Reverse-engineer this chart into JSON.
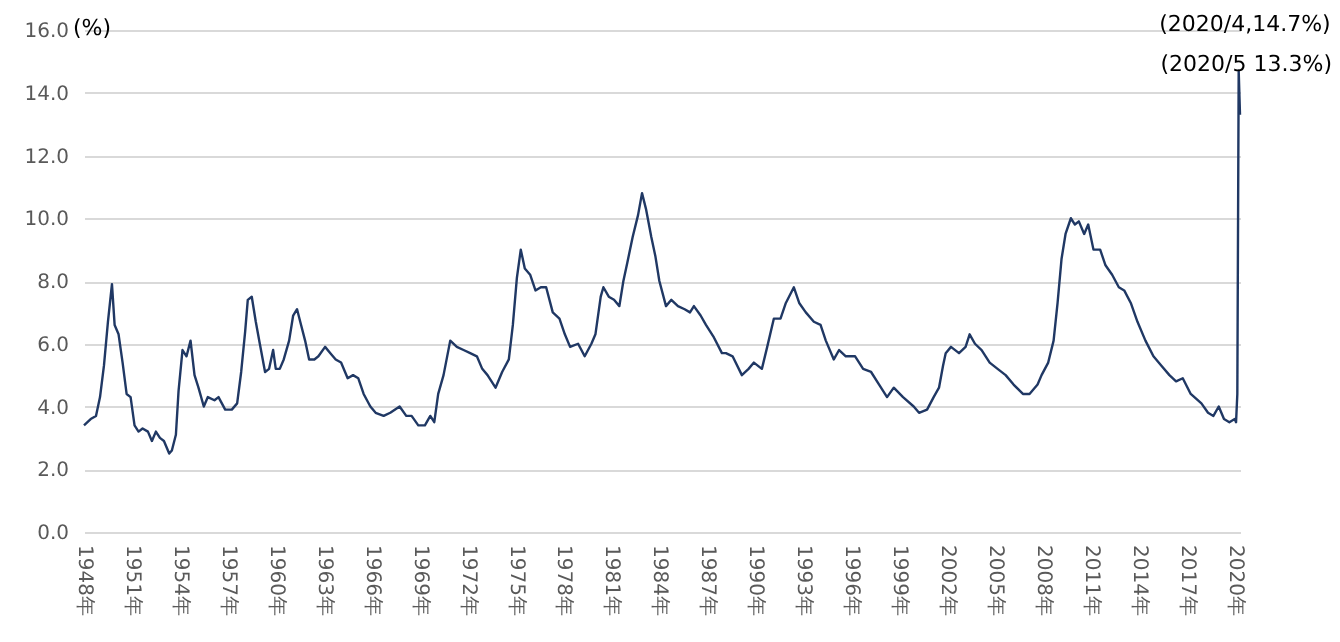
{
  "chart_data": {
    "type": "line",
    "ylabel": "(%)",
    "grid": "y",
    "marker": "none",
    "line_style": "solid",
    "xlim": [
      "1948-01",
      "2020-05"
    ],
    "ylim": [
      0,
      16
    ],
    "yticks": [
      {
        "value": 0,
        "label": "0.0"
      },
      {
        "value": 2,
        "label": "2.0"
      },
      {
        "value": 4,
        "label": "4.0"
      },
      {
        "value": 6,
        "label": "6.0"
      },
      {
        "value": 8,
        "label": "8.0"
      },
      {
        "value": 10,
        "label": "10.0"
      },
      {
        "value": 12,
        "label": "12.0"
      },
      {
        "value": 14,
        "label": "14.0"
      },
      {
        "value": 16,
        "label": "16.0"
      }
    ],
    "xticks": [
      {
        "value": "1948-01",
        "label": "1948年"
      },
      {
        "value": "1951-01",
        "label": "1951年"
      },
      {
        "value": "1954-01",
        "label": "1954年"
      },
      {
        "value": "1957-01",
        "label": "1957年"
      },
      {
        "value": "1960-01",
        "label": "1960年"
      },
      {
        "value": "1963-01",
        "label": "1963年"
      },
      {
        "value": "1966-01",
        "label": "1966年"
      },
      {
        "value": "1969-01",
        "label": "1969年"
      },
      {
        "value": "1972-01",
        "label": "1972年"
      },
      {
        "value": "1975-01",
        "label": "1975年"
      },
      {
        "value": "1978-01",
        "label": "1978年"
      },
      {
        "value": "1981-01",
        "label": "1981年"
      },
      {
        "value": "1984-01",
        "label": "1984年"
      },
      {
        "value": "1987-01",
        "label": "1987年"
      },
      {
        "value": "1990-01",
        "label": "1990年"
      },
      {
        "value": "1993-01",
        "label": "1993年"
      },
      {
        "value": "1996-01",
        "label": "1996年"
      },
      {
        "value": "1999-01",
        "label": "1999年"
      },
      {
        "value": "2002-01",
        "label": "2002年"
      },
      {
        "value": "2005-01",
        "label": "2005年"
      },
      {
        "value": "2008-01",
        "label": "2008年"
      },
      {
        "value": "2011-01",
        "label": "2011年"
      },
      {
        "value": "2014-01",
        "label": "2014年"
      },
      {
        "value": "2017-01",
        "label": "2017年"
      },
      {
        "value": "2020-01",
        "label": "2020年"
      }
    ],
    "annotations": [
      {
        "text": "(2020/4,14.7%)",
        "x": "2020-04",
        "y": 14.7
      },
      {
        "text": "(2020/5 13.3%)",
        "x": "2020-05",
        "y": 13.3
      }
    ],
    "x": [
      "1948-01",
      "1948-06",
      "1948-10",
      "1949-01",
      "1949-04",
      "1949-07",
      "1949-10",
      "1949-12",
      "1950-03",
      "1950-06",
      "1950-09",
      "1950-12",
      "1951-03",
      "1951-06",
      "1951-09",
      "1952-01",
      "1952-04",
      "1952-07",
      "1952-10",
      "1953-01",
      "1953-05",
      "1953-07",
      "1953-10",
      "1953-12",
      "1954-03",
      "1954-06",
      "1954-09",
      "1954-12",
      "1955-03",
      "1955-07",
      "1955-10",
      "1956-03",
      "1956-06",
      "1956-11",
      "1957-04",
      "1957-08",
      "1957-11",
      "1958-02",
      "1958-04",
      "1958-07",
      "1958-10",
      "1959-01",
      "1959-05",
      "1959-08",
      "1959-11",
      "1960-01",
      "1960-04",
      "1960-07",
      "1960-11",
      "1961-02",
      "1961-05",
      "1961-08",
      "1961-11",
      "1962-02",
      "1962-06",
      "1962-09",
      "1963-02",
      "1963-06",
      "1963-10",
      "1964-02",
      "1964-07",
      "1964-11",
      "1965-03",
      "1965-07",
      "1965-12",
      "1966-04",
      "1966-10",
      "1967-03",
      "1967-10",
      "1968-03",
      "1968-07",
      "1968-12",
      "1969-05",
      "1969-09",
      "1969-12",
      "1970-03",
      "1970-07",
      "1970-12",
      "1971-05",
      "1971-10",
      "1972-03",
      "1972-08",
      "1972-12",
      "1973-04",
      "1973-10",
      "1974-03",
      "1974-08",
      "1974-11",
      "1975-02",
      "1975-05",
      "1975-08",
      "1975-12",
      "1976-04",
      "1976-08",
      "1976-12",
      "1977-05",
      "1977-10",
      "1978-02",
      "1978-06",
      "1978-12",
      "1979-05",
      "1979-10",
      "1980-01",
      "1980-05",
      "1980-07",
      "1980-11",
      "1981-03",
      "1981-07",
      "1981-10",
      "1982-01",
      "1982-05",
      "1982-09",
      "1982-12",
      "1983-03",
      "1983-07",
      "1983-10",
      "1984-01",
      "1984-06",
      "1984-10",
      "1985-03",
      "1985-08",
      "1985-12",
      "1986-03",
      "1986-08",
      "1986-12",
      "1987-06",
      "1987-12",
      "1988-03",
      "1988-08",
      "1989-03",
      "1989-08",
      "1989-12",
      "1990-06",
      "1990-10",
      "1991-03",
      "1991-08",
      "1991-12",
      "1992-06",
      "1992-10",
      "1993-03",
      "1993-09",
      "1994-02",
      "1994-06",
      "1994-12",
      "1995-04",
      "1995-09",
      "1996-04",
      "1996-10",
      "1997-04",
      "1997-10",
      "1998-04",
      "1998-09",
      "1999-04",
      "1999-12",
      "2000-04",
      "2000-10",
      "2001-03",
      "2001-07",
      "2001-10",
      "2001-12",
      "2002-04",
      "2002-10",
      "2003-03",
      "2003-06",
      "2003-10",
      "2004-03",
      "2004-09",
      "2005-03",
      "2005-09",
      "2006-03",
      "2006-10",
      "2007-03",
      "2007-09",
      "2007-12",
      "2008-05",
      "2008-09",
      "2008-12",
      "2009-03",
      "2009-06",
      "2009-10",
      "2010-01",
      "2010-04",
      "2010-08",
      "2010-11",
      "2011-03",
      "2011-08",
      "2011-12",
      "2012-05",
      "2012-10",
      "2013-02",
      "2013-07",
      "2013-12",
      "2014-06",
      "2014-12",
      "2015-06",
      "2015-12",
      "2016-05",
      "2016-10",
      "2017-04",
      "2017-12",
      "2018-05",
      "2018-09",
      "2019-01",
      "2019-05",
      "2019-09",
      "2020-01",
      "2020-02",
      "2020-03",
      "2020-04",
      "2020-05"
    ],
    "series": [
      {
        "color": "#203864",
        "values": [
          3.4,
          3.6,
          3.7,
          4.3,
          5.3,
          6.7,
          7.9,
          6.6,
          6.3,
          5.4,
          4.4,
          4.3,
          3.4,
          3.2,
          3.3,
          3.2,
          2.9,
          3.2,
          3.0,
          2.9,
          2.5,
          2.6,
          3.1,
          4.5,
          5.8,
          5.6,
          6.1,
          5.0,
          4.6,
          4.0,
          4.3,
          4.2,
          4.3,
          3.9,
          3.9,
          4.1,
          5.1,
          6.4,
          7.4,
          7.5,
          6.7,
          6.0,
          5.1,
          5.2,
          5.8,
          5.2,
          5.2,
          5.5,
          6.1,
          6.9,
          7.1,
          6.6,
          6.1,
          5.5,
          5.5,
          5.6,
          5.9,
          5.7,
          5.5,
          5.4,
          4.9,
          5.0,
          4.9,
          4.4,
          4.0,
          3.8,
          3.7,
          3.8,
          4.0,
          3.7,
          3.7,
          3.4,
          3.4,
          3.7,
          3.5,
          4.4,
          5.0,
          6.1,
          5.9,
          5.8,
          5.7,
          5.6,
          5.2,
          5.0,
          4.6,
          5.1,
          5.5,
          6.6,
          8.1,
          9.0,
          8.4,
          8.2,
          7.7,
          7.8,
          7.8,
          7.0,
          6.8,
          6.3,
          5.9,
          6.0,
          5.6,
          6.0,
          6.3,
          7.5,
          7.8,
          7.5,
          7.4,
          7.2,
          8.0,
          8.6,
          9.4,
          10.1,
          10.8,
          10.3,
          9.4,
          8.8,
          8.0,
          7.2,
          7.4,
          7.2,
          7.1,
          7.0,
          7.2,
          6.9,
          6.6,
          6.2,
          5.7,
          5.7,
          5.6,
          5.0,
          5.2,
          5.4,
          5.2,
          5.9,
          6.8,
          6.8,
          7.3,
          7.8,
          7.3,
          7.0,
          6.7,
          6.6,
          6.1,
          5.5,
          5.8,
          5.6,
          5.6,
          5.2,
          5.1,
          4.7,
          4.3,
          4.6,
          4.3,
          4.0,
          3.8,
          3.9,
          4.3,
          4.6,
          5.3,
          5.7,
          5.9,
          5.7,
          5.9,
          6.3,
          6.0,
          5.8,
          5.4,
          5.2,
          5.0,
          4.7,
          4.4,
          4.4,
          4.7,
          5.0,
          5.4,
          6.1,
          7.3,
          8.7,
          9.5,
          10.0,
          9.8,
          9.9,
          9.5,
          9.8,
          9.0,
          9.0,
          8.5,
          8.2,
          7.8,
          7.7,
          7.3,
          6.7,
          6.1,
          5.6,
          5.3,
          5.0,
          4.8,
          4.9,
          4.4,
          4.1,
          3.8,
          3.7,
          4.0,
          3.6,
          3.5,
          3.6,
          3.5,
          4.4,
          14.7,
          13.3
        ]
      }
    ]
  }
}
